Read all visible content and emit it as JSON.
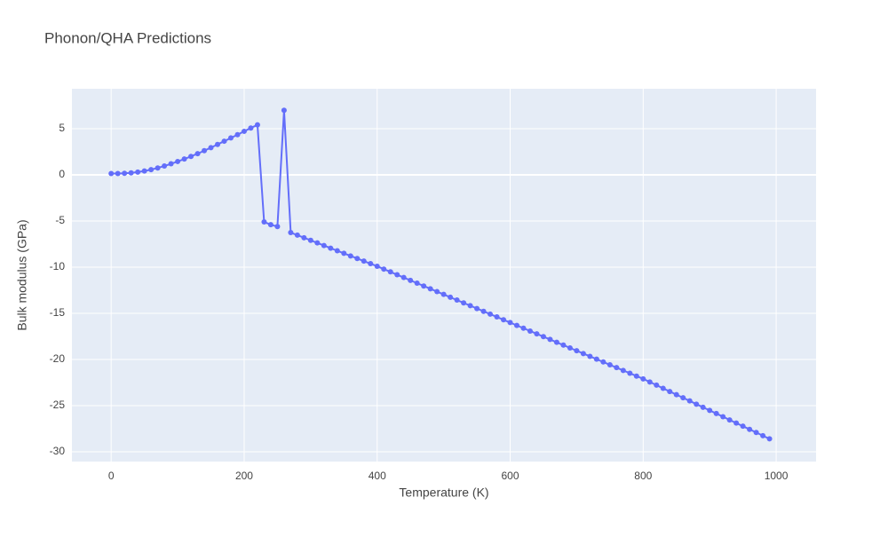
{
  "chart_data": {
    "type": "line",
    "title": "Phonon/QHA Predictions",
    "x_label": "Temperature (K)",
    "y_label": "Bulk modulus (GPa)",
    "x": [
      0,
      10,
      20,
      30,
      40,
      50,
      60,
      70,
      80,
      90,
      100,
      110,
      120,
      130,
      140,
      150,
      160,
      170,
      180,
      190,
      200,
      210,
      220,
      230,
      240,
      250,
      260,
      270,
      280,
      290,
      300,
      310,
      320,
      330,
      340,
      350,
      360,
      370,
      380,
      390,
      400,
      410,
      420,
      430,
      440,
      450,
      460,
      470,
      480,
      490,
      500,
      510,
      520,
      530,
      540,
      550,
      560,
      570,
      580,
      590,
      600,
      610,
      620,
      630,
      640,
      650,
      660,
      670,
      680,
      690,
      700,
      710,
      720,
      730,
      740,
      750,
      760,
      770,
      780,
      790,
      800,
      810,
      820,
      830,
      840,
      850,
      860,
      870,
      880,
      890,
      900,
      910,
      920,
      930,
      940,
      950,
      960,
      970,
      980,
      990
    ],
    "series": [
      {
        "color": "#636efa",
        "values": [
          0.15,
          0.15,
          0.17,
          0.22,
          0.3,
          0.42,
          0.57,
          0.75,
          0.96,
          1.2,
          1.45,
          1.72,
          2.0,
          2.3,
          2.62,
          2.95,
          3.3,
          3.65,
          4.0,
          4.35,
          4.72,
          5.08,
          5.42,
          -5.1,
          -5.4,
          -5.6,
          7.0,
          -6.25,
          -6.53,
          -6.81,
          -7.09,
          -7.37,
          -7.65,
          -7.94,
          -8.22,
          -8.5,
          -8.78,
          -9.06,
          -9.34,
          -9.62,
          -9.9,
          -10.21,
          -10.51,
          -10.82,
          -11.12,
          -11.43,
          -11.73,
          -12.04,
          -12.34,
          -12.65,
          -12.95,
          -13.26,
          -13.56,
          -13.87,
          -14.17,
          -14.48,
          -14.78,
          -15.09,
          -15.39,
          -15.7,
          -16.0,
          -16.31,
          -16.61,
          -16.92,
          -17.22,
          -17.53,
          -17.83,
          -18.14,
          -18.44,
          -18.75,
          -19.05,
          -19.36,
          -19.66,
          -19.97,
          -20.27,
          -20.58,
          -20.88,
          -21.19,
          -21.49,
          -21.8,
          -22.1,
          -22.44,
          -22.78,
          -23.13,
          -23.47,
          -23.81,
          -24.15,
          -24.49,
          -24.84,
          -25.18,
          -25.52,
          -25.86,
          -26.2,
          -26.55,
          -26.89,
          -27.23,
          -27.57,
          -27.91,
          -28.26,
          -28.6
        ]
      }
    ],
    "xlim": [
      -59,
      1060
    ],
    "ylim": [
      -31.06,
      9.33
    ],
    "xticks": [
      0,
      200,
      400,
      600,
      800,
      1000
    ],
    "yticks": [
      -30,
      -25,
      -20,
      -15,
      -10,
      -5,
      0,
      5
    ],
    "grid": true
  }
}
